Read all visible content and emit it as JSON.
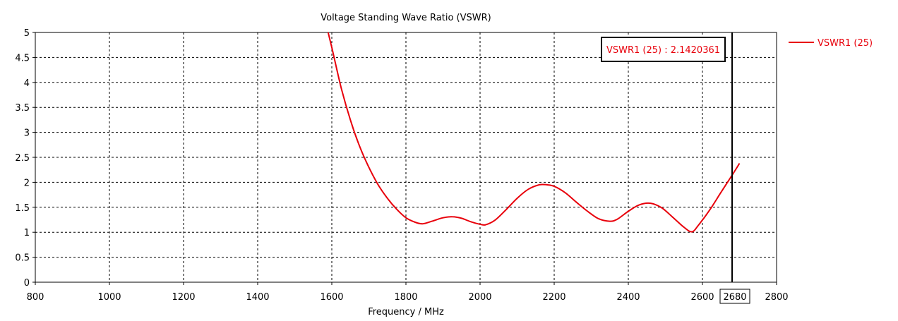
{
  "chart_data": {
    "type": "line",
    "title": "Voltage Standing Wave Ratio (VSWR)",
    "xlabel": "Frequency / MHz",
    "ylabel": "",
    "xlim": [
      800,
      2800
    ],
    "ylim": [
      0,
      5
    ],
    "x_ticks": [
      800,
      1000,
      1200,
      1400,
      1600,
      1800,
      2000,
      2200,
      2400,
      2600,
      2800
    ],
    "y_ticks": [
      0,
      0.5,
      1,
      1.5,
      2,
      2.5,
      3,
      3.5,
      4,
      4.5,
      5
    ],
    "y_tick_labels": [
      "0",
      "0.5",
      "1",
      "1.5",
      "2",
      "2.5",
      "3",
      "3.5",
      "4",
      "4.5",
      "5"
    ],
    "grid": true,
    "legend_position": "right",
    "series": [
      {
        "name": "VSWR1 (25)",
        "color": "#e8000b",
        "x": [
          1590,
          1600,
          1625,
          1650,
          1675,
          1700,
          1725,
          1750,
          1775,
          1800,
          1825,
          1845,
          1870,
          1900,
          1925,
          1950,
          1975,
          2000,
          2015,
          2040,
          2070,
          2100,
          2130,
          2160,
          2180,
          2200,
          2230,
          2260,
          2290,
          2320,
          2350,
          2370,
          2400,
          2430,
          2460,
          2490,
          2520,
          2550,
          2572,
          2590,
          2620,
          2650,
          2680,
          2700
        ],
        "y": [
          5.0,
          4.7,
          3.9,
          3.25,
          2.72,
          2.3,
          1.95,
          1.68,
          1.46,
          1.29,
          1.2,
          1.17,
          1.22,
          1.29,
          1.31,
          1.28,
          1.21,
          1.16,
          1.15,
          1.24,
          1.45,
          1.68,
          1.86,
          1.95,
          1.95,
          1.92,
          1.79,
          1.6,
          1.42,
          1.27,
          1.22,
          1.26,
          1.42,
          1.55,
          1.58,
          1.49,
          1.3,
          1.1,
          1.01,
          1.15,
          1.45,
          1.8,
          2.142,
          2.38
        ]
      }
    ],
    "marker": {
      "x": 2680,
      "x_label": "2680",
      "readout": "VSWR1 (25) : 2.1420361"
    }
  }
}
